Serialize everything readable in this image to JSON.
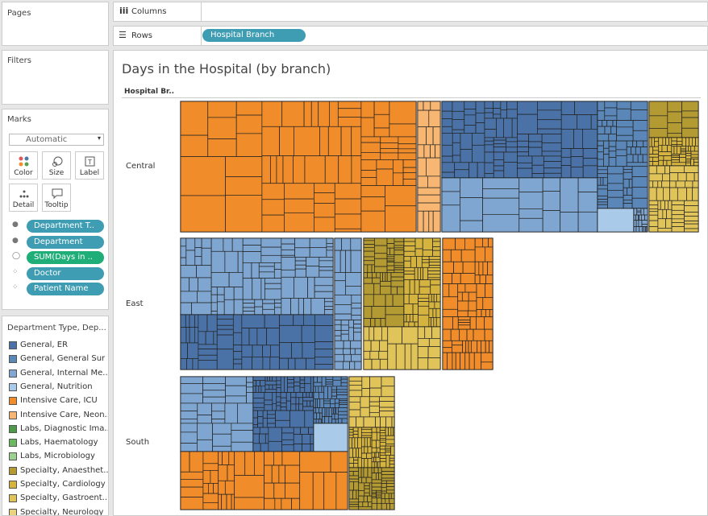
{
  "pages": {
    "title": "Pages"
  },
  "shelves": {
    "columns": "Columns",
    "rows": "Rows",
    "rows_pill": "Hospital Branch"
  },
  "filters": {
    "title": "Filters"
  },
  "marks": {
    "title": "Marks",
    "mark_type": "Automatic",
    "buttons": [
      "Color",
      "Size",
      "Label",
      "Detail",
      "Tooltip"
    ],
    "pills": [
      "Department T..",
      "Department",
      "SUM(Days in ..",
      "Doctor",
      "Patient Name"
    ]
  },
  "legend": {
    "title": "Department Type, Dep...",
    "items": [
      {
        "label": "General, ER",
        "color": "#4a72a6"
      },
      {
        "label": "General, General Sur",
        "color": "#5a86b8"
      },
      {
        "label": "General, Internal Me..",
        "color": "#7fa6d0"
      },
      {
        "label": "General, Nutrition",
        "color": "#a9cbe9"
      },
      {
        "label": "Intensive Care, ICU",
        "color": "#f08c2a"
      },
      {
        "label": "Intensive Care, Neon..",
        "color": "#f7b672"
      },
      {
        "label": "Labs, Diagnostic Ima..",
        "color": "#4f9a49"
      },
      {
        "label": "Labs, Haematology",
        "color": "#6cb862"
      },
      {
        "label": "Labs, Microbiology",
        "color": "#9fd18e"
      },
      {
        "label": "Specialty, Anaesthet..",
        "color": "#b39a32"
      },
      {
        "label": "Specialty, Cardiology",
        "color": "#d4b33f"
      },
      {
        "label": "Specialty, Gastroent..",
        "color": "#e0c45a"
      },
      {
        "label": "Specialty, Neurology",
        "color": "#e9d37e"
      }
    ]
  },
  "view": {
    "title": "Days in the Hospital (by branch)",
    "row_header": "Hospital Br..",
    "rows": [
      "Central",
      "East",
      "South"
    ]
  }
}
